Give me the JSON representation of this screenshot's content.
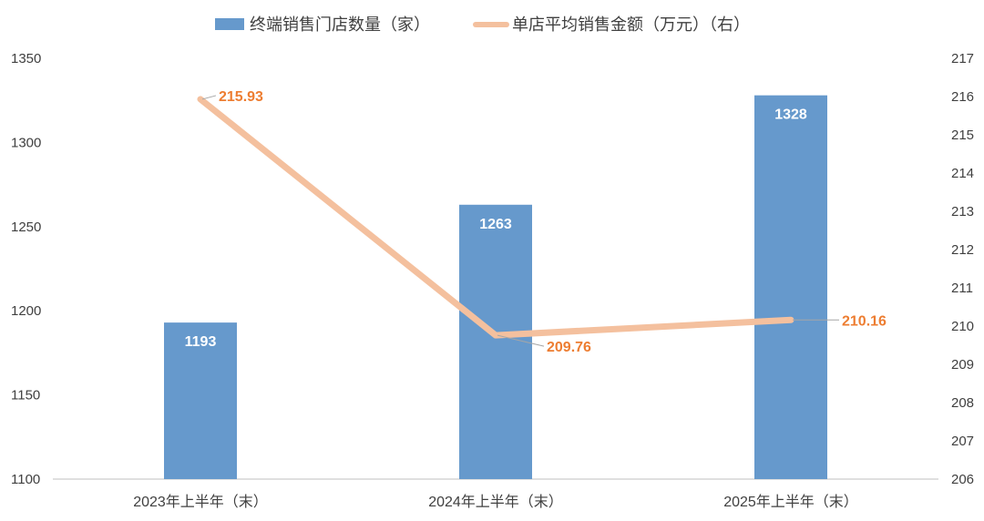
{
  "chart_data": {
    "type": "bar+line",
    "categories": [
      "2023年上半年（末）",
      "2024年上半年（末）",
      "2025年上半年（末）"
    ],
    "series": [
      {
        "name": "终端销售门店数量（家）",
        "type": "bar",
        "axis": "left",
        "values": [
          1193,
          1263,
          1328
        ],
        "labels": [
          "1193",
          "1263",
          "1328"
        ]
      },
      {
        "name": "单店平均销售金额（万元）（右）",
        "type": "line",
        "axis": "right",
        "values": [
          215.93,
          209.76,
          210.16
        ],
        "labels": [
          "215.93",
          "209.76",
          "210.16"
        ]
      }
    ],
    "y_left": {
      "min": 1100,
      "max": 1350,
      "step": 50,
      "ticks": [
        "1100",
        "1150",
        "1200",
        "1250",
        "1300",
        "1350"
      ]
    },
    "y_right": {
      "min": 206,
      "max": 217,
      "step": 1,
      "ticks": [
        "206",
        "207",
        "208",
        "209",
        "210",
        "211",
        "212",
        "213",
        "214",
        "215",
        "216",
        "217"
      ]
    },
    "legend_position": "top",
    "grid": false,
    "colors": {
      "bar": "#6699CC",
      "line": "#F4C09E",
      "line_label": "#ED7D31",
      "axis": "#BFBFBF",
      "leader": "#A6A6A6"
    }
  }
}
